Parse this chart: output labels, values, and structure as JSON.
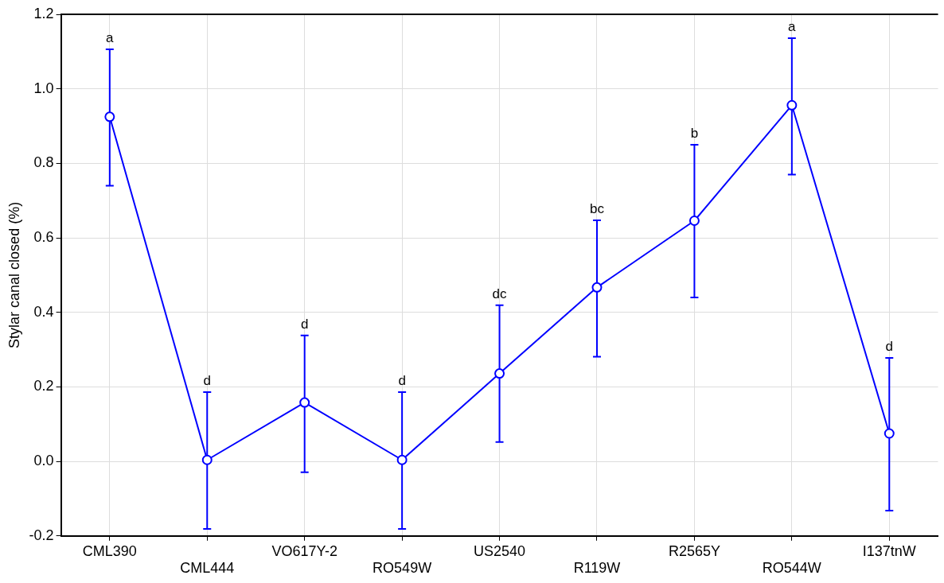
{
  "chart_data": {
    "type": "line",
    "ylabel": "Stylar canal closed (%)",
    "categories": [
      "CML390",
      "CML444",
      "VO617Y-2",
      "RO549W",
      "US2540",
      "R119W",
      "R2565Y",
      "RO544W",
      "I137tnW"
    ],
    "series": [
      {
        "color": "#0000ff",
        "values": [
          0.925,
          0.004,
          0.158,
          0.004,
          0.236,
          0.467,
          0.646,
          0.956,
          0.075
        ],
        "errors": [
          [
            0.74,
            1.106
          ],
          [
            -0.181,
            0.186
          ],
          [
            -0.029,
            0.338
          ],
          [
            -0.181,
            0.186
          ],
          [
            0.052,
            0.419
          ],
          [
            0.281,
            0.647
          ],
          [
            0.44,
            0.85
          ],
          [
            0.77,
            1.136
          ],
          [
            -0.132,
            0.278
          ]
        ]
      }
    ],
    "ylim": [
      -0.2,
      1.2
    ],
    "yticks": [
      -0.2,
      {
        "value": 0,
        "label": "0.0"
      },
      0.2,
      0.4,
      0.6,
      0.8,
      {
        "value": 1,
        "label": "1.0"
      },
      1.2
    ],
    "grid": true,
    "legend": false,
    "marker": "circle",
    "line_style": "solid",
    "annotations": [
      {
        "text": "a",
        "x": "CML390",
        "y": 1.106
      },
      {
        "text": "d",
        "x": "CML444",
        "y": 0.186
      },
      {
        "text": "d",
        "x": "VO617Y-2",
        "y": 0.338
      },
      {
        "text": "d",
        "x": "RO549W",
        "y": 0.186
      },
      {
        "text": "dc",
        "x": "US2540",
        "y": 0.419
      },
      {
        "text": "bc",
        "x": "R119W",
        "y": 0.647
      },
      {
        "text": "b",
        "x": "R2565Y",
        "y": 0.85
      },
      {
        "text": "a",
        "x": "RO544W",
        "y": 1.136
      },
      {
        "text": "d",
        "x": "I137tnW",
        "y": 0.278
      }
    ]
  }
}
